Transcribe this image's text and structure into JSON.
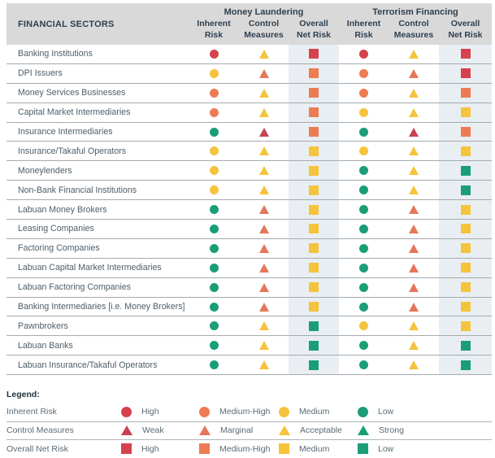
{
  "chart_data": {
    "type": "table",
    "row_header": "FINANCIAL SECTORS",
    "groups": [
      {
        "label": "Money Laundering",
        "columns": [
          "Inherent\nRisk",
          "Control\nMeasures",
          "Overall\nNet Risk"
        ]
      },
      {
        "label": "Terrorism Financing",
        "columns": [
          "Inherent\nRisk",
          "Control\nMeasures",
          "Overall\nNet Risk"
        ]
      }
    ],
    "cell_order": [
      "inherent_risk",
      "control_measures",
      "overall_net_risk"
    ],
    "marker_shapes": [
      "circle",
      "triangle",
      "square"
    ],
    "rows": [
      {
        "sector": "Banking Institutions",
        "ml": [
          "high",
          "acceptable",
          "high"
        ],
        "tf": [
          "high",
          "acceptable",
          "high"
        ]
      },
      {
        "sector": "DPI Issuers",
        "ml": [
          "medium",
          "marginal",
          "medium-high"
        ],
        "tf": [
          "medium-high",
          "marginal",
          "high"
        ]
      },
      {
        "sector": "Money Services Businesses",
        "ml": [
          "medium-high",
          "acceptable",
          "medium-high"
        ],
        "tf": [
          "medium-high",
          "acceptable",
          "medium-high"
        ]
      },
      {
        "sector": "Capital Market Intermediaries",
        "ml": [
          "medium-high",
          "acceptable",
          "medium-high"
        ],
        "tf": [
          "medium",
          "acceptable",
          "medium"
        ]
      },
      {
        "sector": "Insurance Intermediaries",
        "ml": [
          "low",
          "weak",
          "medium-high"
        ],
        "tf": [
          "low",
          "weak",
          "medium-high"
        ]
      },
      {
        "sector": "Insurance/Takaful Operators",
        "ml": [
          "medium",
          "acceptable",
          "medium"
        ],
        "tf": [
          "medium",
          "acceptable",
          "medium"
        ]
      },
      {
        "sector": "Moneylenders",
        "ml": [
          "medium",
          "acceptable",
          "medium"
        ],
        "tf": [
          "low",
          "acceptable",
          "low"
        ]
      },
      {
        "sector": "Non-Bank Financial Institutions",
        "ml": [
          "medium",
          "acceptable",
          "medium"
        ],
        "tf": [
          "low",
          "acceptable",
          "low"
        ]
      },
      {
        "sector": "Labuan Money Brokers",
        "ml": [
          "low",
          "marginal",
          "medium"
        ],
        "tf": [
          "low",
          "marginal",
          "medium"
        ]
      },
      {
        "sector": "Leasing Companies",
        "ml": [
          "low",
          "marginal",
          "medium"
        ],
        "tf": [
          "low",
          "marginal",
          "medium"
        ]
      },
      {
        "sector": "Factoring Companies",
        "ml": [
          "low",
          "marginal",
          "medium"
        ],
        "tf": [
          "low",
          "marginal",
          "medium"
        ]
      },
      {
        "sector": "Labuan Capital Market Intermediaries",
        "ml": [
          "low",
          "marginal",
          "medium"
        ],
        "tf": [
          "low",
          "marginal",
          "medium"
        ]
      },
      {
        "sector": "Labuan Factoring Companies",
        "ml": [
          "low",
          "marginal",
          "medium"
        ],
        "tf": [
          "low",
          "marginal",
          "medium"
        ]
      },
      {
        "sector": "Banking Intermediaries [i.e. Money Brokers]",
        "ml": [
          "low",
          "marginal",
          "medium"
        ],
        "tf": [
          "low",
          "marginal",
          "medium"
        ]
      },
      {
        "sector": "Pawnbrokers",
        "ml": [
          "low",
          "acceptable",
          "low"
        ],
        "tf": [
          "medium",
          "acceptable",
          "medium"
        ]
      },
      {
        "sector": "Labuan Banks",
        "ml": [
          "low",
          "acceptable",
          "low"
        ],
        "tf": [
          "low",
          "acceptable",
          "low"
        ]
      },
      {
        "sector": "Labuan Insurance/Takaful Operators",
        "ml": [
          "low",
          "acceptable",
          "low"
        ],
        "tf": [
          "low",
          "acceptable",
          "low"
        ]
      }
    ],
    "legend": {
      "title": "Legend:",
      "rows": [
        {
          "label": "Inherent Risk",
          "shape": "circle",
          "items": [
            {
              "level": "high",
              "label": "High"
            },
            {
              "level": "medium-high",
              "label": "Medium-High"
            },
            {
              "level": "medium",
              "label": "Medium"
            },
            {
              "level": "low",
              "label": "Low"
            }
          ]
        },
        {
          "label": "Control Measures",
          "shape": "triangle",
          "items": [
            {
              "level": "weak",
              "label": "Weak"
            },
            {
              "level": "marginal",
              "label": "Marginal"
            },
            {
              "level": "acceptable",
              "label": "Acceptable"
            },
            {
              "level": "strong",
              "label": "Strong"
            }
          ]
        },
        {
          "label": "Overall Net Risk",
          "shape": "square",
          "items": [
            {
              "level": "high",
              "label": "High"
            },
            {
              "level": "medium-high",
              "label": "Medium-High"
            },
            {
              "level": "medium",
              "label": "Medium"
            },
            {
              "level": "low",
              "label": "Low"
            }
          ]
        }
      ]
    }
  },
  "colors": {
    "high": "#d5424e",
    "medium_high": "#ed7c53",
    "medium": "#f5c33c",
    "low": "#1b9e77",
    "weak": "#c64253",
    "marginal": "#e5775a",
    "acceptable": "#f5c33c",
    "strong": "#1b9e77",
    "header_bg": "#d9d9d9",
    "header_text": "#2e4050",
    "row_text": "#4d5d68",
    "band_bg": "#e9eef3",
    "row_line": "#a6abb0"
  }
}
